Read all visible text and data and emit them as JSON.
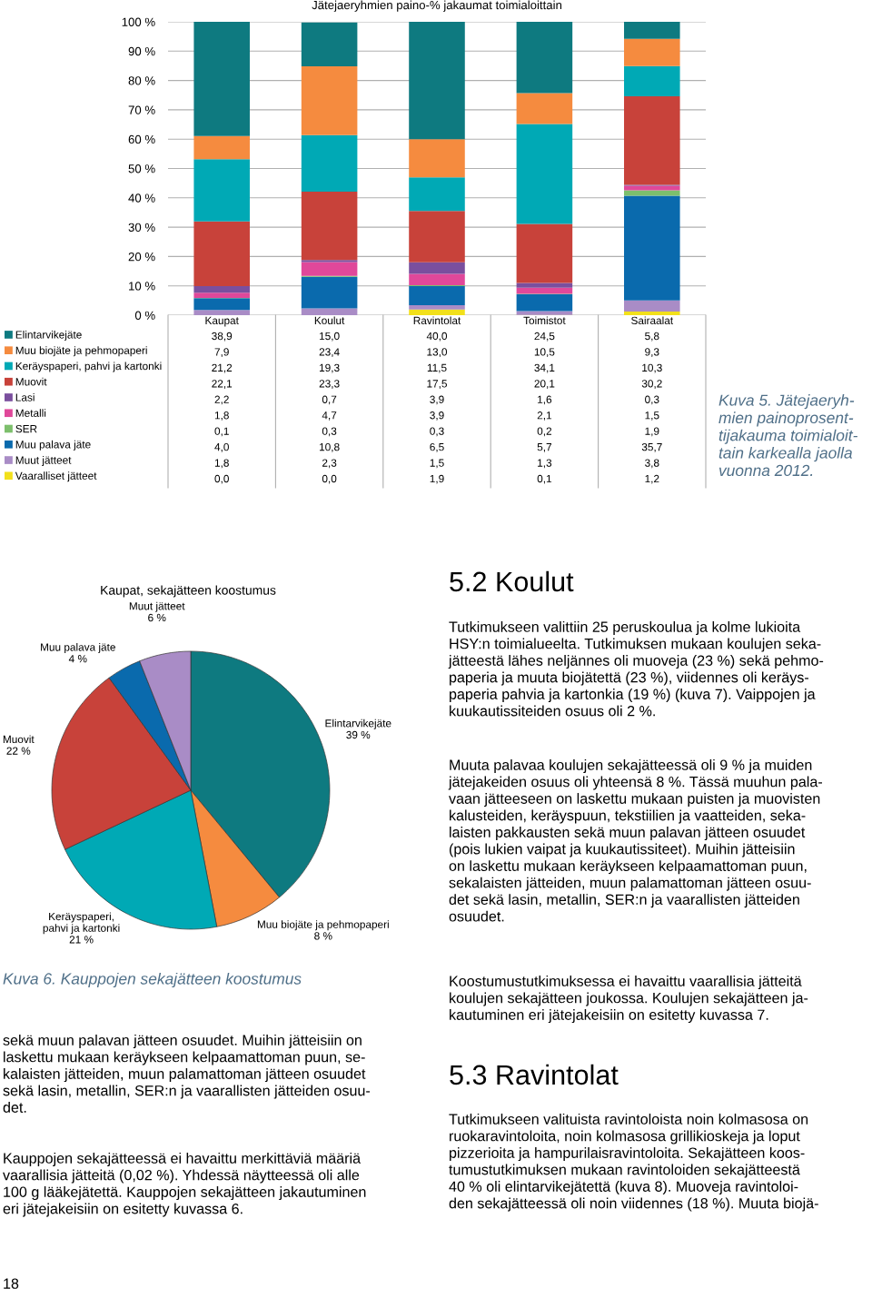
{
  "chart_data": [
    {
      "type": "bar",
      "stacked": true,
      "title": "Jätejaeryhmien paino-% jakaumat toimialoittain",
      "categories": [
        "Kaupat",
        "Koulut",
        "Ravintolat",
        "Toimistot",
        "Sairaalat"
      ],
      "ylim": [
        0,
        100
      ],
      "yticks": [
        {
          "value": 0,
          "label": "0 %"
        },
        {
          "value": 10,
          "label": "10 %"
        },
        {
          "value": 20,
          "label": "20 %"
        },
        {
          "value": 30,
          "label": "30 %"
        },
        {
          "value": 40,
          "label": "40 %"
        },
        {
          "value": 50,
          "label": "50 %"
        },
        {
          "value": 60,
          "label": "60 %"
        },
        {
          "value": 70,
          "label": "70 %"
        },
        {
          "value": 80,
          "label": "80 %"
        },
        {
          "value": 90,
          "label": "90 %"
        },
        {
          "value": 100,
          "label": "100 %"
        }
      ],
      "grid": "y",
      "legend": "bottom left",
      "series": [
        {
          "name": "Vaaralliset jätteet",
          "color": "#f2e01b",
          "values": [
            0.0,
            0.0,
            1.9,
            0.1,
            1.2
          ],
          "value_labels": [
            "0,0",
            "0,0",
            "1,9",
            "0,1",
            "1,2"
          ]
        },
        {
          "name": "Muut jätteet",
          "color": "#a98cc6",
          "values": [
            1.8,
            2.3,
            1.5,
            1.3,
            3.8
          ],
          "value_labels": [
            "1,8",
            "2,3",
            "1,5",
            "1,3",
            "3,8"
          ]
        },
        {
          "name": "Muu palava jäte",
          "color": "#0a6aad",
          "values": [
            4.0,
            10.8,
            6.5,
            5.7,
            35.7
          ],
          "value_labels": [
            "4,0",
            "10,8",
            "6,5",
            "5,7",
            "35,7"
          ]
        },
        {
          "name": "SER",
          "color": "#7dbf6c",
          "values": [
            0.1,
            0.3,
            0.3,
            0.2,
            1.9
          ],
          "value_labels": [
            "0,1",
            "0,3",
            "0,3",
            "0,2",
            "1,9"
          ]
        },
        {
          "name": "Metalli",
          "color": "#e0489a",
          "values": [
            1.8,
            4.7,
            3.9,
            2.1,
            1.5
          ],
          "value_labels": [
            "1,8",
            "4,7",
            "3,9",
            "2,1",
            "1,5"
          ]
        },
        {
          "name": "Lasi",
          "color": "#7a4f9e",
          "values": [
            2.2,
            0.7,
            3.9,
            1.6,
            0.3
          ],
          "value_labels": [
            "2,2",
            "0,7",
            "3,9",
            "1,6",
            "0,3"
          ]
        },
        {
          "name": "Muovit",
          "color": "#c8423a",
          "values": [
            22.1,
            23.3,
            17.5,
            20.1,
            30.2
          ],
          "value_labels": [
            "22,1",
            "23,3",
            "17,5",
            "20,1",
            "30,2"
          ]
        },
        {
          "name": "Keräyspaperi, pahvi ja kartonki",
          "color": "#00a9b5",
          "values": [
            21.2,
            19.3,
            11.5,
            34.1,
            10.3
          ],
          "value_labels": [
            "21,2",
            "19,3",
            "11,5",
            "34,1",
            "10,3"
          ]
        },
        {
          "name": "Muu biojäte ja pehmopaperi",
          "color": "#f58b3f",
          "values": [
            7.9,
            23.4,
            13.0,
            10.5,
            9.3
          ],
          "value_labels": [
            "7,9",
            "23,4",
            "13,0",
            "10,5",
            "9,3"
          ]
        },
        {
          "name": "Elintarvikejäte",
          "color": "#0e7a80",
          "values": [
            38.9,
            15.0,
            40.0,
            24.5,
            5.8
          ],
          "value_labels": [
            "38,9",
            "15,0",
            "40,0",
            "24,5",
            "5,8"
          ]
        }
      ],
      "annotations": [
        "Kuva 5. Jätejaeryh-\nmien painoprosent-\ntijakauma toimialoit-\ntain karkealla jaolla\nvuonna 2012."
      ]
    },
    {
      "type": "pie",
      "title": "Kaupat, sekajätteen koostumus",
      "categories": [
        "Elintarvikejäte",
        "Muu biojäte ja pehmopaperi",
        "Keräyspaperi,\npahvi ja kartonki",
        "Muovit",
        "Muu palava jäte",
        "Muut jätteet"
      ],
      "values": [
        39,
        8,
        21,
        22,
        4,
        6
      ],
      "value_labels": [
        "39 %",
        "8 %",
        "21 %",
        "22 %",
        "4 %",
        "6 %"
      ],
      "colors": [
        "#0e7a80",
        "#f58b3f",
        "#00a9b5",
        "#c8423a",
        "#0a6aad",
        "#a98cc6"
      ],
      "annotations": [
        "Kuva 6. Kauppojen sekajätteen koostumus"
      ]
    },
    {
      "type": "other",
      "title": "5.2 Koulut",
      "annotations": [
        "Tutkimukseen valittiin 25 peruskoulua ja kolme lukioita\nHSY:n toimialueelta. Tutkimuksen mukaan koulujen seka-\njätteestä lähes neljännes oli muoveja (23 %) sekä pehmo-\npaperia ja muuta biojätettä (23 %), viidennes oli keräys-\npaperia pahvia ja kartonkia (19 %) (kuva 7). Vaippojen ja\nkuukautissiteiden osuus oli 2 %.",
        "Muuta palavaa koulujen sekajätteessä oli 9 % ja muiden\njätejakeiden osuus oli yhteensä 8 %. Tässä muuhun pala-\nvaan jätteeseen on laskettu mukaan puisten ja muovisten\nkalusteiden, keräyspuun, tekstiilien ja vaatteiden, seka-\nlaisten pakkausten sekä muun palavan jätteen osuudet\n(pois lukien vaipat ja kuukautissiteet). Muihin jätteisiin\non laskettu mukaan keräykseen kelpaamattoman puun,\nsekalaisten jätteiden, muun palamattoman jätteen osuu-\ndet sekä lasin, metallin, SER:n ja vaarallisten jätteiden\nosuudet.",
        "Koostumustutkimuksessa ei havaittu vaarallisia jätteitä\nkoulujen sekajätteen joukossa. Koulujen sekajätteen ja-\nkautuminen eri jätejakeisiin on esitetty kuvassa 7."
      ]
    },
    {
      "type": "other",
      "title": "5.3 Ravintolat",
      "annotations": [
        "Tutkimukseen valituista ravintoloista noin kolmasosa on\nruokaravintoloita, noin kolmasosa grillikioskeja ja loput\npizzerioita ja hampurilaisravintoloita. Sekajätteen koos-\ntumustutkimuksen mukaan ravintoloiden sekajätteestä\n40 % oli elintarvikejätettä (kuva 8). Muoveja ravintoloi-\nden sekajätteessä oli noin viidennes (18 %). Muuta biojä-"
      ]
    },
    {
      "type": "other",
      "annotations": [
        "sekä muun palavan jätteen osuudet. Muihin jätteisiin on\nlaskettu mukaan keräykseen kelpaamattoman puun, se-\nkalaisten jätteiden, muun palamattoman jätteen osuudet\nsekä lasin, metallin, SER:n ja vaarallisten jätteiden osuu-\ndet.",
        "Kauppojen sekajätteessä ei havaittu merkittäviä määriä\nvaarallisia jätteitä (0,02 %). Yhdessä näytteessä oli alle\n100 g lääkejätettä. Kauppojen sekajätteen jakautuminen\neri jätejakeisiin on esitetty kuvassa 6.",
        "18"
      ]
    }
  ]
}
